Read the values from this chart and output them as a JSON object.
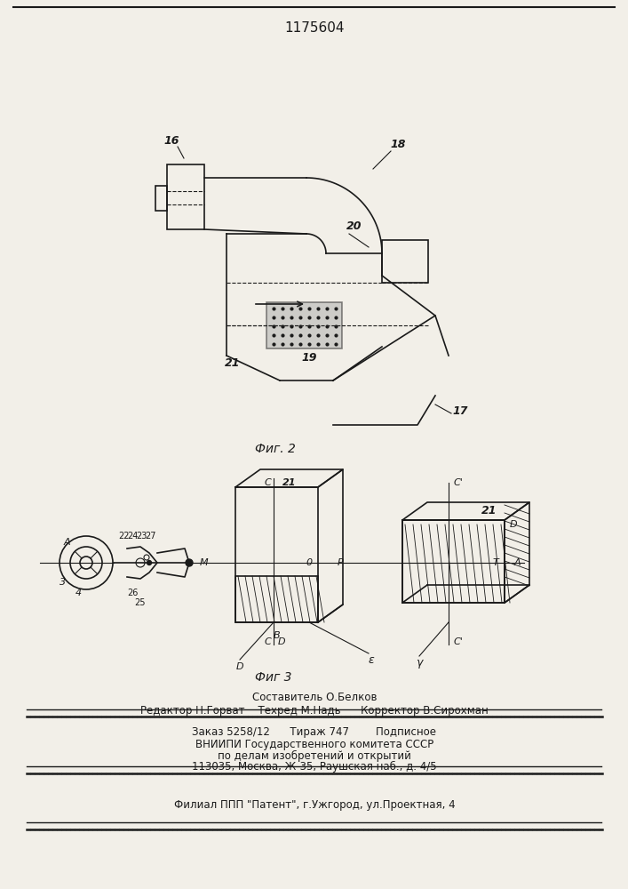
{
  "patent_number": "1175604",
  "fig2_caption": "Фиг. 2",
  "fig3_caption": "Фиг 3",
  "bg_color": "#f2efe8",
  "line_color": "#1a1a1a"
}
